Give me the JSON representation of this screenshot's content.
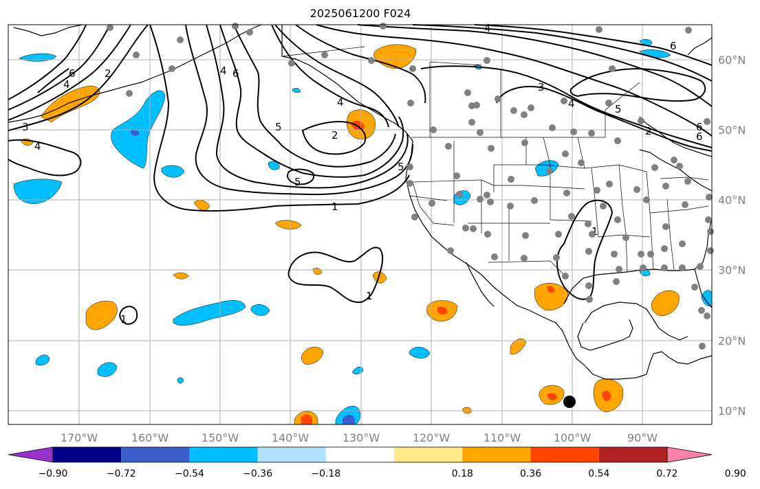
{
  "title": "2025061200 F024",
  "lon_ticks": [
    "170°W",
    "160°W",
    "150°W",
    "140°W",
    "130°W",
    "120°W",
    "110°W",
    "100°W",
    "90°W"
  ],
  "lat_ticks": [
    "60°N",
    "50°N",
    "40°N",
    "30°N",
    "20°N",
    "10°N"
  ],
  "colorbar": {
    "colors": [
      "#9932cc",
      "#00008b",
      "#3a5fcd",
      "#00bfff",
      "#b0e2ff",
      "#ffffff",
      "#ffec8b",
      "#ffa500",
      "#ff4500",
      "#b22222",
      "#ff82ab"
    ],
    "tick_labels": [
      "−0.90",
      "−0.72",
      "−0.54",
      "−0.36",
      "−0.18",
      "0.18",
      "0.36",
      "0.54",
      "0.72",
      "0.90"
    ]
  },
  "contour_labels": [
    "6",
    "2",
    "4",
    "3",
    "4",
    "4",
    "6",
    "5",
    "5",
    "2",
    "5",
    "1",
    "4",
    "6",
    "3",
    "4",
    "5",
    "6",
    "6",
    "2",
    "1",
    "1",
    "1",
    "4"
  ],
  "colors": {
    "contour": "#000000",
    "station_dot": "#808080",
    "grid": "#b0b0b0",
    "marker": "#000000"
  }
}
